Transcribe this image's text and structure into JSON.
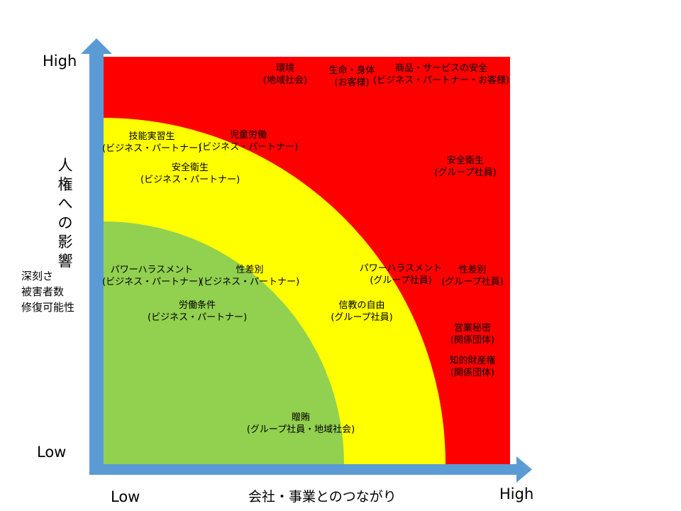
{
  "axes": {
    "y_high": "High",
    "y_low": "Low",
    "x_low": "Low",
    "x_high": "High",
    "y_title_chars": [
      "人",
      "権",
      "へ",
      "の",
      "影",
      "響"
    ],
    "y_metrics": [
      "深刻さ",
      "被害者数",
      "修復可能性"
    ],
    "x_title": "会社・事業とのつながり"
  },
  "zones": {
    "high": "#ff0000",
    "medium": "#ffff00",
    "low": "#92d050",
    "axis_arrow": "#5b9bd5"
  },
  "items": [
    {
      "id": "environment",
      "line1": "環境",
      "line2": "(地域社会)"
    },
    {
      "id": "life-body",
      "line1": "生命・身体",
      "line2": "(お客様)"
    },
    {
      "id": "product-safety",
      "line1": "商品・サービスの安全",
      "line2": "(ビジネス・パートナー・お客様)"
    },
    {
      "id": "technical-intern",
      "line1": "技能実習生",
      "line2": "(ビジネス・パートナー)"
    },
    {
      "id": "child-labor",
      "line1": "児童労働",
      "line2": "(ビジネス・パートナー)"
    },
    {
      "id": "ohs-partner",
      "line1": "安全衛生",
      "line2": "(ビジネス・パートナー)"
    },
    {
      "id": "ohs-group",
      "line1": "安全衛生",
      "line2": "(グループ社員)"
    },
    {
      "id": "powerharass-partner",
      "line1": "パワーハラスメント",
      "line2": "(ビジネス・パートナー)"
    },
    {
      "id": "gender-partner",
      "line1": "性差別",
      "line2": "(ビジネス・パートナー)"
    },
    {
      "id": "powerharass-group",
      "line1": "パワーハラスメント",
      "line2": "(グループ社員)"
    },
    {
      "id": "gender-group",
      "line1": "性差別",
      "line2": "(グループ社員)"
    },
    {
      "id": "labor-conditions",
      "line1": "労働条件",
      "line2": "(ビジネス・パートナー)"
    },
    {
      "id": "religious-freedom",
      "line1": "信教の自由",
      "line2": "(グループ社員)"
    },
    {
      "id": "trade-secrets",
      "line1": "営業秘密",
      "line2": "(関係団体)"
    },
    {
      "id": "ip-rights",
      "line1": "知的財産権",
      "line2": "(関係団体)"
    },
    {
      "id": "bribery",
      "line1": "贈賄",
      "line2": "(グループ社員・地域社会)"
    }
  ]
}
